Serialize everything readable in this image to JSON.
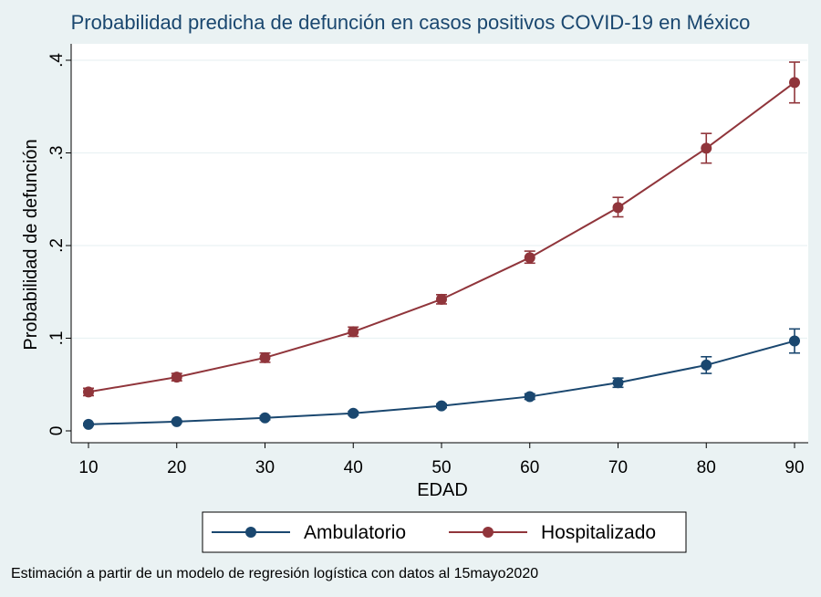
{
  "chart_data": {
    "type": "line",
    "title": "Probabilidad predicha de defunción en casos positivos COVID-19 en México",
    "xlabel": "EDAD",
    "ylabel": "Probabilidad de defunción",
    "x": [
      10,
      20,
      30,
      40,
      50,
      60,
      70,
      80,
      90
    ],
    "xticks": [
      "10",
      "20",
      "30",
      "40",
      "50",
      "60",
      "70",
      "80",
      "90"
    ],
    "xlim": [
      10,
      90
    ],
    "yticks": [
      {
        "value": 0,
        "label": "0"
      },
      {
        "value": 0.1,
        "label": ".1"
      },
      {
        "value": 0.2,
        "label": ".2"
      },
      {
        "value": 0.3,
        "label": ".3"
      },
      {
        "value": 0.4,
        "label": ".4"
      }
    ],
    "ylim": [
      0,
      0.4
    ],
    "grid": true,
    "legend_position": "bottom",
    "series": [
      {
        "name": "Ambulatorio",
        "color": "#1a476f",
        "values": [
          0.007,
          0.01,
          0.014,
          0.019,
          0.027,
          0.037,
          0.052,
          0.071,
          0.097
        ],
        "ci_low": [
          0.006,
          0.009,
          0.012,
          0.017,
          0.025,
          0.034,
          0.047,
          0.062,
          0.084
        ],
        "ci_high": [
          0.008,
          0.011,
          0.016,
          0.021,
          0.029,
          0.04,
          0.057,
          0.08,
          0.11
        ]
      },
      {
        "name": "Hospitalizado",
        "color": "#90353b",
        "values": [
          0.042,
          0.058,
          0.079,
          0.107,
          0.142,
          0.187,
          0.241,
          0.305,
          0.376
        ],
        "ci_low": [
          0.038,
          0.054,
          0.074,
          0.102,
          0.137,
          0.181,
          0.231,
          0.289,
          0.354
        ],
        "ci_high": [
          0.046,
          0.062,
          0.084,
          0.112,
          0.147,
          0.194,
          0.252,
          0.321,
          0.398
        ]
      }
    ],
    "note": "Estimación a partir de un modelo de regresión logística con datos al 15mayo2020"
  }
}
